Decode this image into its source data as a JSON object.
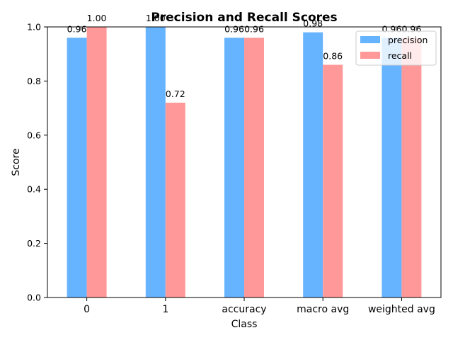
{
  "chart_data": {
    "type": "bar",
    "title": "Precision and Recall Scores",
    "xlabel": "Class",
    "ylabel": "Score",
    "categories": [
      "0",
      "1",
      "accuracy",
      "macro avg",
      "weighted avg"
    ],
    "series": [
      {
        "name": "precision",
        "color": "#66b3ff",
        "values": [
          0.96,
          1.0,
          0.96,
          0.98,
          0.96
        ],
        "labels": [
          "0.96",
          "1.00",
          "0.96",
          "0.98",
          "0.96"
        ]
      },
      {
        "name": "recall",
        "color": "#ff9999",
        "values": [
          1.0,
          0.72,
          0.96,
          0.86,
          0.96
        ],
        "labels": [
          "1.00",
          "0.72",
          "0.96",
          "0.86",
          "0.96"
        ]
      }
    ],
    "ylim": [
      0,
      1.0
    ],
    "yticks": [
      "0.0",
      "0.2",
      "0.4",
      "0.6",
      "0.8",
      "1.0"
    ],
    "legend_position": "top-right",
    "grid": false
  }
}
